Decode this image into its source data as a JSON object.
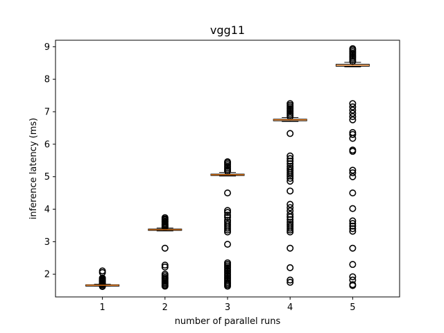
{
  "chart_data": {
    "type": "box",
    "title": "vgg11",
    "xlabel": "number of parallel runs",
    "ylabel": "inference latency (ms)",
    "categories": [
      "1",
      "2",
      "3",
      "4",
      "5"
    ],
    "x_ticks": [
      "1",
      "2",
      "3",
      "4",
      "5"
    ],
    "y_ticks": [
      "2",
      "3",
      "4",
      "5",
      "6",
      "7",
      "8",
      "9"
    ],
    "ylim": [
      1.3,
      9.2
    ],
    "grid": false,
    "colors": {
      "box": "#000000",
      "median": "#ff7f0e",
      "outlier": "#000000"
    },
    "boxes": [
      {
        "category": "1",
        "whisker_low": 1.63,
        "q1": 1.645,
        "median": 1.66,
        "q3": 1.675,
        "whisker_high": 1.69,
        "outliers": [
          1.62,
          1.64,
          1.68,
          1.7,
          1.72,
          1.75,
          1.78,
          1.8,
          1.82,
          1.85,
          1.88,
          2.05,
          2.1
        ]
      },
      {
        "category": "2",
        "whisker_low": 3.33,
        "q1": 3.35,
        "median": 3.37,
        "q3": 3.39,
        "whisker_high": 3.42,
        "outliers": [
          1.63,
          1.66,
          1.7,
          1.74,
          1.78,
          1.82,
          1.86,
          1.9,
          1.95,
          2.0,
          2.22,
          2.28,
          2.8,
          3.44,
          3.47,
          3.5,
          3.53,
          3.56,
          3.6,
          3.63,
          3.67,
          3.7,
          3.74
        ]
      },
      {
        "category": "3",
        "whisker_low": 5.02,
        "q1": 5.04,
        "median": 5.06,
        "q3": 5.08,
        "whisker_high": 5.13,
        "outliers": [
          1.63,
          1.67,
          1.71,
          1.75,
          1.8,
          1.85,
          1.9,
          1.95,
          2.0,
          2.05,
          2.1,
          2.15,
          2.2,
          2.25,
          2.3,
          2.35,
          2.92,
          3.3,
          3.36,
          3.42,
          3.48,
          3.54,
          3.6,
          3.66,
          3.75,
          3.82,
          3.9,
          3.96,
          4.5,
          5.17,
          5.22,
          5.27,
          5.32,
          5.37,
          5.42,
          5.46
        ]
      },
      {
        "category": "4",
        "whisker_low": 6.7,
        "q1": 6.72,
        "median": 6.75,
        "q3": 6.77,
        "whisker_high": 6.82,
        "outliers": [
          1.75,
          1.82,
          2.2,
          2.8,
          3.3,
          3.36,
          3.42,
          3.48,
          3.54,
          3.6,
          3.68,
          3.76,
          3.84,
          3.95,
          4.05,
          4.15,
          4.56,
          4.86,
          4.95,
          5.02,
          5.08,
          5.14,
          5.2,
          5.26,
          5.32,
          5.4,
          5.48,
          5.56,
          5.64,
          6.33,
          6.85,
          6.9,
          6.95,
          7.0,
          7.05,
          7.1,
          7.15,
          7.2,
          7.25
        ]
      },
      {
        "category": "5",
        "whisker_low": 8.38,
        "q1": 8.4,
        "median": 8.43,
        "q3": 8.46,
        "whisker_high": 8.52,
        "outliers": [
          1.65,
          1.68,
          1.82,
          1.92,
          2.3,
          2.8,
          3.32,
          3.4,
          3.48,
          3.56,
          3.64,
          4.02,
          4.5,
          5.0,
          5.12,
          5.2,
          5.78,
          5.82,
          6.18,
          6.3,
          6.36,
          6.75,
          6.85,
          6.95,
          7.05,
          7.15,
          7.25,
          8.55,
          8.6,
          8.65,
          8.7,
          8.75,
          8.8,
          8.85,
          8.9,
          8.94
        ]
      }
    ]
  }
}
